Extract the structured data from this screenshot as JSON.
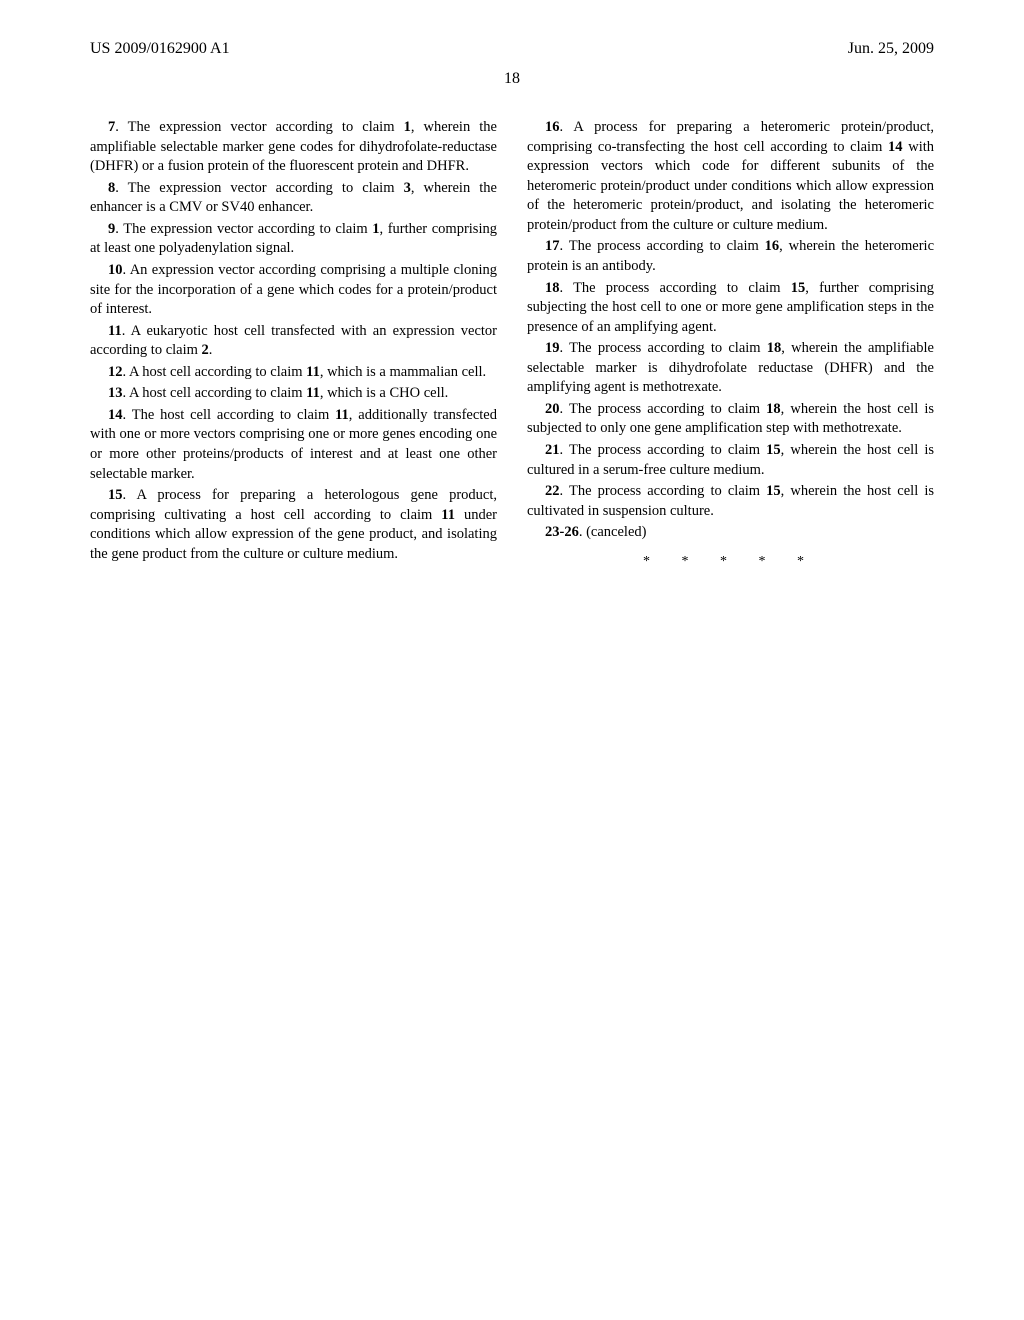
{
  "header": {
    "pub_number": "US 2009/0162900 A1",
    "pub_date": "Jun. 25, 2009"
  },
  "page_number": "18",
  "left_claims": [
    {
      "num": "7",
      "text": ". The expression vector according to claim 1, wherein the amplifiable selectable marker gene codes for dihydrofolate-reductase (DHFR) or a fusion protein of the fluorescent protein and DHFR."
    },
    {
      "num": "8",
      "text": ". The expression vector according to claim 3, wherein the enhancer is a CMV or SV40 enhancer."
    },
    {
      "num": "9",
      "text": ". The expression vector according to claim 1, further comprising at least one polyadenylation signal."
    },
    {
      "num": "10",
      "text": ". An expression vector according comprising a multiple cloning site for the incorporation of a gene which codes for a protein/product of interest."
    },
    {
      "num": "11",
      "text": ". A eukaryotic host cell transfected with an expression vector according to claim 2."
    },
    {
      "num": "12",
      "text": ". A host cell according to claim 11, which is a mammalian cell."
    },
    {
      "num": "13",
      "text": ". A host cell according to claim 11, which is a CHO cell."
    },
    {
      "num": "14",
      "text": ". The host cell according to claim 11, additionally transfected with one or more vectors comprising one or more genes encoding one or more other proteins/products of interest and at least one other selectable marker."
    },
    {
      "num": "15",
      "text": ". A process for preparing a heterologous gene product, comprising cultivating a host cell according to claim 11 under conditions which allow expression of the gene product, and isolating the gene product from the culture or culture medium."
    }
  ],
  "right_claims": [
    {
      "num": "16",
      "text": ". A process for preparing a heteromeric protein/product, comprising co-transfecting the host cell according to claim 14 with expression vectors which code for different subunits of the heteromeric protein/product under conditions which allow expression of the heteromeric protein/product, and isolating the heteromeric protein/product from the culture or culture medium."
    },
    {
      "num": "17",
      "text": ". The process according to claim 16, wherein the heteromeric protein is an antibody."
    },
    {
      "num": "18",
      "text": ". The process according to claim 15, further comprising subjecting the host cell to one or more gene amplification steps in the presence of an amplifying agent."
    },
    {
      "num": "19",
      "text": ". The process according to claim 18, wherein the amplifiable selectable marker is dihydrofolate reductase (DHFR) and the amplifying agent is methotrexate."
    },
    {
      "num": "20",
      "text": ". The process according to claim 18, wherein the host cell is subjected to only one gene amplification step with methotrexate."
    },
    {
      "num": "21",
      "text": ". The process according to claim 15, wherein the host cell is cultured in a serum-free culture medium."
    },
    {
      "num": "22",
      "text": ". The process according to claim 15, wherein the host cell is cultivated in suspension culture."
    },
    {
      "num": "23-26",
      "text": ". (canceled)"
    }
  ],
  "asterisks": "* * * * *"
}
